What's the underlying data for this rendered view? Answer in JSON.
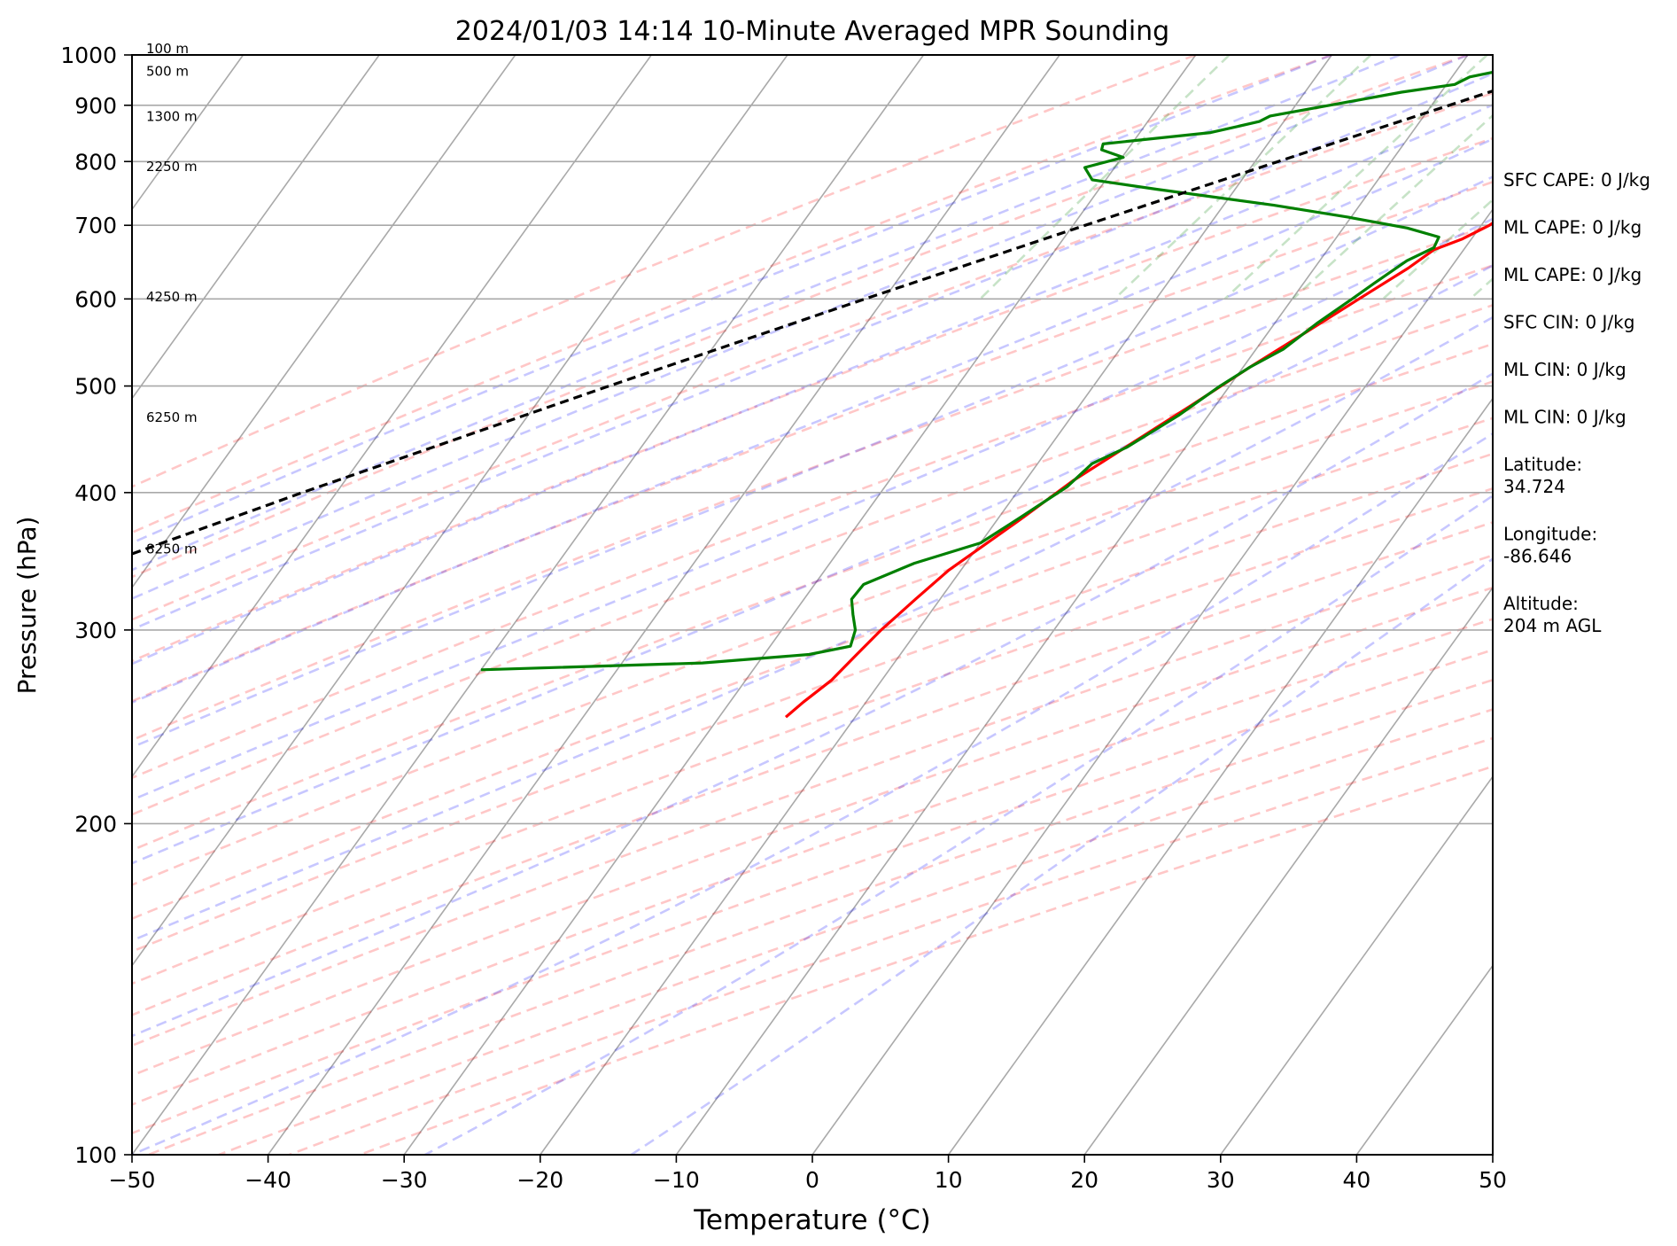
{
  "chart_data": {
    "type": "line",
    "title": "2024/01/03 14:14 10-Minute Averaged MPR Sounding",
    "xlabel": "Temperature (°C)",
    "ylabel": "Pressure (hPa)",
    "xlim": [
      -50,
      50
    ],
    "ylim": [
      1000,
      100
    ],
    "y_scale": "log",
    "x_ticks": [
      -50,
      -40,
      -30,
      -20,
      -10,
      0,
      10,
      20,
      30,
      40,
      50
    ],
    "x_tick_labels": [
      "−50",
      "−40",
      "−30",
      "−20",
      "−10",
      "0",
      "10",
      "20",
      "30",
      "40",
      "50"
    ],
    "y_ticks": [
      100,
      200,
      300,
      400,
      500,
      600,
      700,
      800,
      900,
      1000
    ],
    "y_tick_labels": [
      "100",
      "200",
      "300",
      "400",
      "500",
      "600",
      "700",
      "800",
      "900",
      "1000"
    ],
    "grid": true,
    "background_lines": {
      "isotherms_skewed": true,
      "dry_adiabats": true,
      "moist_adiabats": true,
      "mixing_ratio_lines": true
    },
    "series": [
      {
        "color": "#ff0000",
        "points": [
          {
            "p": 1000,
            "t": 0.0
          },
          {
            "p": 995,
            "t": 1.0
          },
          {
            "p": 985,
            "t": 2.1
          },
          {
            "p": 970,
            "t": 2.6
          },
          {
            "p": 955,
            "t": 2.6
          },
          {
            "p": 940,
            "t": 3.5
          },
          {
            "p": 925,
            "t": 4.2
          },
          {
            "p": 910,
            "t": 4.6
          },
          {
            "p": 895,
            "t": 5.5
          },
          {
            "p": 880,
            "t": 5.7
          },
          {
            "p": 860,
            "t": 5.6
          },
          {
            "p": 845,
            "t": 5.5
          },
          {
            "p": 830,
            "t": 5.1
          },
          {
            "p": 815,
            "t": 4.6
          },
          {
            "p": 800,
            "t": 4.5
          },
          {
            "p": 785,
            "t": 4.5
          },
          {
            "p": 770,
            "t": 3.9
          },
          {
            "p": 750,
            "t": 2.7
          },
          {
            "p": 730,
            "t": 1.7
          },
          {
            "p": 700,
            "t": 0.6
          },
          {
            "p": 680,
            "t": -0.7
          },
          {
            "p": 665,
            "t": -2.2
          },
          {
            "p": 640,
            "t": -3.1
          },
          {
            "p": 600,
            "t": -5.1
          },
          {
            "p": 560,
            "t": -7.2
          },
          {
            "p": 520,
            "t": -9.5
          },
          {
            "p": 480,
            "t": -11.8
          },
          {
            "p": 440,
            "t": -14.4
          },
          {
            "p": 410,
            "t": -16.5
          },
          {
            "p": 380,
            "t": -18.2
          },
          {
            "p": 360,
            "t": -19.5
          },
          {
            "p": 340,
            "t": -20.9
          },
          {
            "p": 320,
            "t": -21.8
          },
          {
            "p": 300,
            "t": -22.7
          },
          {
            "p": 285,
            "t": -23.2
          },
          {
            "p": 270,
            "t": -23.7
          },
          {
            "p": 258,
            "t": -24.6
          },
          {
            "p": 250,
            "t": -25.1
          }
        ]
      },
      {
        "color": "#008000",
        "points": [
          {
            "p": 1000,
            "t": -2.5
          },
          {
            "p": 995,
            "t": -4.1
          },
          {
            "p": 985,
            "t": -4.1
          },
          {
            "p": 955,
            "t": -8.7
          },
          {
            "p": 940,
            "t": -9.4
          },
          {
            "p": 925,
            "t": -12.9
          },
          {
            "p": 900,
            "t": -17.5
          },
          {
            "p": 880,
            "t": -21.3
          },
          {
            "p": 870,
            "t": -21.8
          },
          {
            "p": 850,
            "t": -24.8
          },
          {
            "p": 830,
            "t": -32.1
          },
          {
            "p": 820,
            "t": -31.9
          },
          {
            "p": 807,
            "t": -29.9
          },
          {
            "p": 790,
            "t": -32.2
          },
          {
            "p": 770,
            "t": -31.0
          },
          {
            "p": 755,
            "t": -25.8
          },
          {
            "p": 730,
            "t": -16.3
          },
          {
            "p": 712,
            "t": -10.2
          },
          {
            "p": 696,
            "t": -5.3
          },
          {
            "p": 683,
            "t": -2.5
          },
          {
            "p": 668,
            "t": -2.3
          },
          {
            "p": 650,
            "t": -3.6
          },
          {
            "p": 620,
            "t": -4.8
          },
          {
            "p": 600,
            "t": -5.6
          },
          {
            "p": 570,
            "t": -6.9
          },
          {
            "p": 540,
            "t": -8.0
          },
          {
            "p": 520,
            "t": -9.5
          },
          {
            "p": 500,
            "t": -10.7
          },
          {
            "p": 470,
            "t": -12.2
          },
          {
            "p": 440,
            "t": -14.3
          },
          {
            "p": 425,
            "t": -16.0
          },
          {
            "p": 405,
            "t": -16.6
          },
          {
            "p": 380,
            "t": -18.4
          },
          {
            "p": 360,
            "t": -20.0
          },
          {
            "p": 345,
            "t": -23.8
          },
          {
            "p": 330,
            "t": -26.4
          },
          {
            "p": 320,
            "t": -26.5
          },
          {
            "p": 310,
            "t": -25.6
          },
          {
            "p": 300,
            "t": -24.6
          },
          {
            "p": 290,
            "t": -24.1
          },
          {
            "p": 285,
            "t": -26.7
          },
          {
            "p": 280,
            "t": -34.1
          },
          {
            "p": 276,
            "t": -50.0
          }
        ]
      },
      {
        "color": "#000000",
        "dashed": true,
        "points": [
          {
            "p": 1000,
            "t": 0.0
          },
          {
            "p": 950,
            "t": -4.3
          },
          {
            "p": 900,
            "t": -8.7
          },
          {
            "p": 850,
            "t": -13.4
          },
          {
            "p": 800,
            "t": -18.3
          },
          {
            "p": 700,
            "t": -29.1
          },
          {
            "p": 600,
            "t": -41.4
          },
          {
            "p": 500,
            "t": -55.6
          },
          {
            "p": 400,
            "t": -72.5
          },
          {
            "p": 300,
            "t": -93.3
          }
        ]
      }
    ],
    "height_labels": [
      {
        "p": 1000,
        "text": "100 m"
      },
      {
        "p": 954,
        "text": "500 m"
      },
      {
        "p": 868,
        "text": "1300 m"
      },
      {
        "p": 781,
        "text": "2250 m"
      },
      {
        "p": 595,
        "text": "4250 m"
      },
      {
        "p": 462,
        "text": "6250 m"
      },
      {
        "p": 351,
        "text": "8250 m"
      }
    ],
    "annotations": [
      "SFC CAPE: 0 J/kg",
      "ML CAPE: 0 J/kg",
      "ML CAPE: 0 J/kg",
      "SFC CIN: 0 J/kg",
      "ML CIN: 0 J/kg",
      "ML CIN: 0 J/kg",
      "Latitude:\n34.724",
      "Longitude:\n-86.646",
      "Altitude:\n204 m AGL"
    ]
  }
}
